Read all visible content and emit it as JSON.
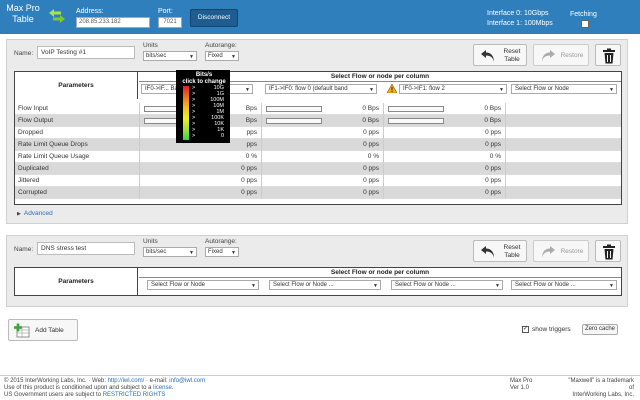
{
  "app": {
    "title_line1": "Max Pro",
    "title_line2": "Table",
    "address_label": "Address:",
    "address_value": "208.85.233.182",
    "port_label": "Port:",
    "port_value": "7021",
    "disconnect_label": "Disconnect",
    "interface0": "Interface 0: 10Gbps",
    "interface1": "Interface 1: 100Mbps",
    "fetching_label": "Fetching",
    "brand_color": "#2f7fbd"
  },
  "common": {
    "name_label": "Name:",
    "units_label": "Units",
    "autorange_label": "Autorange:",
    "reset_label_1": "Reset",
    "reset_label_2": "Table",
    "restore_label": "Restore",
    "parameters_header": "Parameters",
    "select_header": "Select Flow or node per column",
    "advanced_label": "Advanced"
  },
  "table1": {
    "name": "VoIP Testing #1",
    "units": "bits/sec",
    "autorange": "Fixed",
    "columns": [
      "IF0->IF... Band",
      "IF1->IF0: flow 0 (default band",
      "IF0->IF1: flow 2",
      "Select Flow or Node"
    ],
    "rows": [
      {
        "label": "Flow Input",
        "values": [
          "Bps",
          "0 Bps",
          "0 Bps"
        ],
        "bars": [
          true,
          true,
          true
        ]
      },
      {
        "label": "Flow Output",
        "values": [
          "Bps",
          "0 Bps",
          "0 Bps"
        ],
        "bars": [
          true,
          true,
          true
        ]
      },
      {
        "label": "Dropped",
        "values": [
          "pps",
          "0 pps",
          "0 pps"
        ],
        "bars": [
          false,
          false,
          false
        ]
      },
      {
        "label": "Rate Limit Queue Drops",
        "values": [
          "pps",
          "0 pps",
          "0 pps"
        ],
        "bars": [
          false,
          false,
          false
        ]
      },
      {
        "label": "Rate Limit Queue Usage",
        "values": [
          "0 %",
          "0 %",
          "0 %"
        ],
        "bars": [
          false,
          false,
          false
        ]
      },
      {
        "label": "Duplicated",
        "values": [
          "0 pps",
          "0 pps",
          "0 pps"
        ],
        "bars": [
          false,
          false,
          false
        ]
      },
      {
        "label": "Jittered",
        "values": [
          "0 pps",
          "0 pps",
          "0 pps"
        ],
        "bars": [
          false,
          false,
          false
        ]
      },
      {
        "label": "Corrupted",
        "values": [
          "0 pps",
          "0 pps",
          "0 pps"
        ],
        "bars": [
          false,
          false,
          false
        ]
      }
    ]
  },
  "popup": {
    "title_1": "Bits/s",
    "title_2": "click to change",
    "levels": [
      "10G",
      "1G",
      "100M",
      "10M",
      "1M",
      "100K",
      "10K",
      "1K",
      "0"
    ]
  },
  "table2": {
    "name": "DNS stress test",
    "units": "bits/sec",
    "autorange": "Fixed",
    "columns": [
      "Select Flow or Node",
      "Select Flow or Node ...",
      "Select Flow or Node ...",
      "Select Flow or Node ..."
    ]
  },
  "bottom": {
    "add_table_label": "Add Table",
    "show_triggers_label": "show triggers",
    "zero_cache_label": "Zero cache"
  },
  "footer": {
    "line1_a": "© 2015 InterWorking Labs, Inc. · Web:",
    "line1_web": "http://iwl.com/",
    "line1_b": "· e-mail:",
    "line1_email": "info@iwl.com",
    "line2_a": "Use of this product is conditioned upon and subject to a",
    "line2_link": "license",
    "line3_a": "US Government users are subject to",
    "line3_link": "RESTRICTED RIGHTS",
    "mid_line1": "Max Pro",
    "mid_line2": "Ver 1.0",
    "right_line1": "\"Maxwell\" is a trademark of",
    "right_line2": "InterWorking Labs, Inc."
  }
}
